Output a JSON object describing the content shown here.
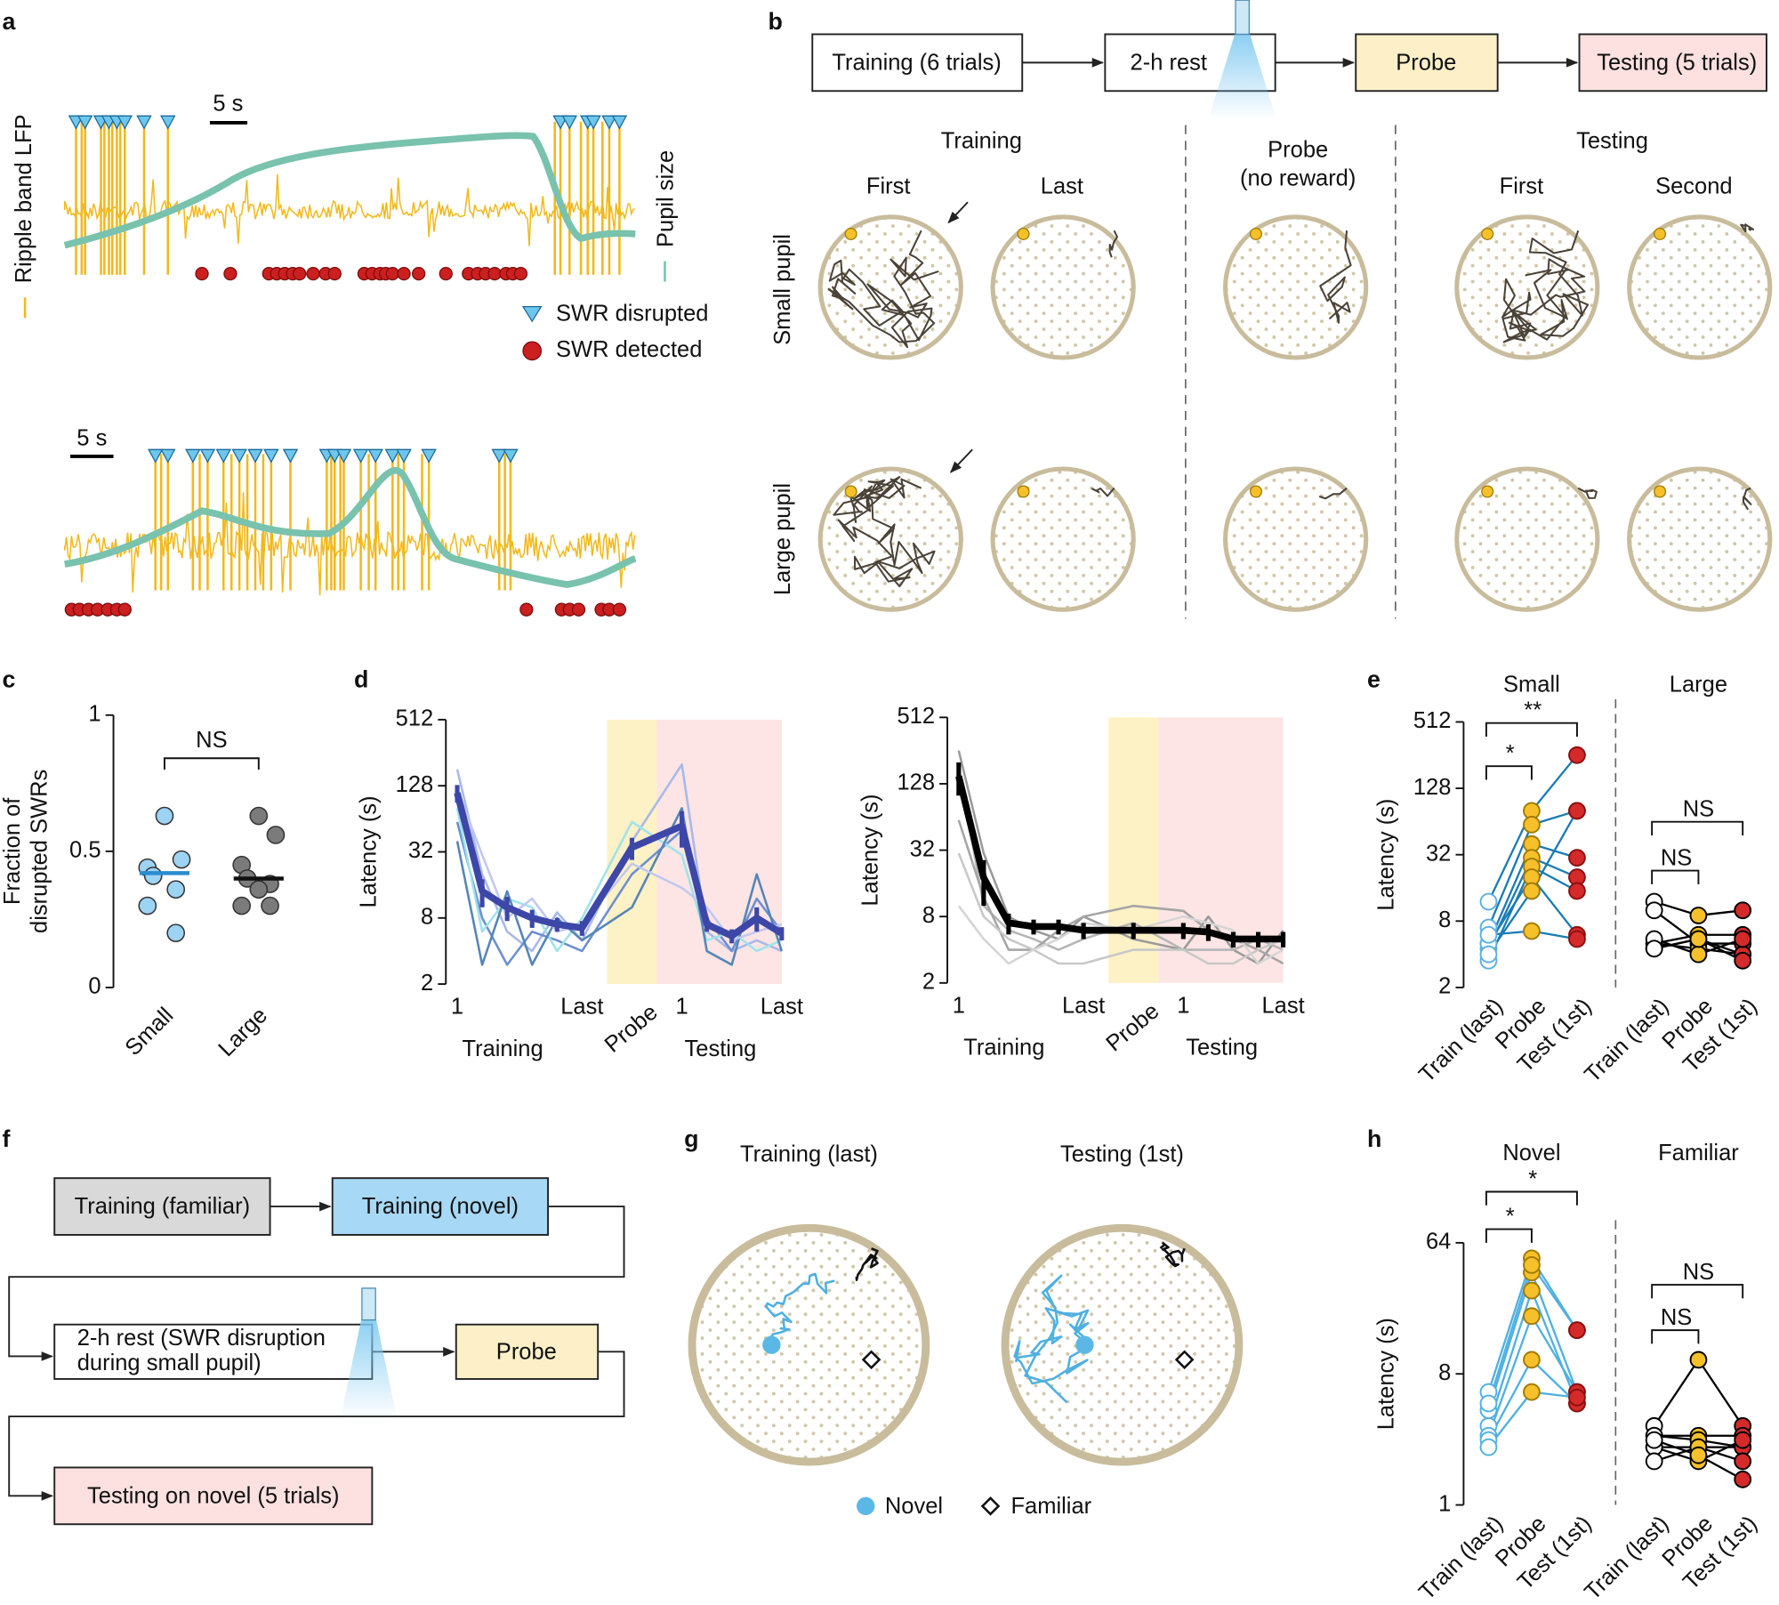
{
  "panel_labels": [
    "a",
    "b",
    "c",
    "d",
    "e",
    "f",
    "g",
    "h"
  ],
  "panel_a": {
    "y_label": "Ripple band LFP",
    "y2_label": "Pupil size",
    "scale_bars": [
      "5 s",
      "5 s"
    ],
    "legend": [
      "SWR disrupted",
      "SWR detected"
    ]
  },
  "panel_b": {
    "flow": [
      "Training (6 trials)",
      "2-h rest",
      "Probe",
      "Testing (5 trials)"
    ],
    "training": "Training",
    "training_cols": [
      "First",
      "Last"
    ],
    "probe": [
      "Probe",
      "(no reward)"
    ],
    "testing": "Testing",
    "testing_cols": [
      "First",
      "Second"
    ],
    "rows": [
      "Small pupil",
      "Large pupil"
    ]
  },
  "panel_f": {
    "boxes": [
      "Training (familiar)",
      "Training (novel)",
      "2-h rest (SWR disruption",
      "during small pupil)",
      "Probe",
      "Testing on novel (5 trials)"
    ]
  },
  "panel_g": {
    "titles": [
      "Training (last)",
      "Testing (1st)"
    ],
    "legend": [
      "Novel",
      "Familiar"
    ]
  },
  "chart_data": [
    {
      "type": "strip",
      "y_label": [
        "Fraction of",
        "disrupted SWRs"
      ],
      "categories": [
        "Small",
        "Large"
      ],
      "values": [
        [
          0.63,
          0.47,
          0.44,
          0.41,
          0.36,
          0.3,
          0.2
        ],
        [
          0.63,
          0.56,
          0.45,
          0.4,
          0.38,
          0.3,
          0.3,
          0.36
        ]
      ],
      "medians": [
        0.42,
        0.4
      ],
      "colors": [
        "#9dd3f3",
        "#7b7b7b"
      ],
      "median_colors": [
        "#2a8ccf",
        "#111111"
      ],
      "ylim": [
        0,
        1
      ],
      "yticks": [
        0,
        0.5,
        1
      ],
      "annotation": "NS"
    },
    {
      "type": "line",
      "y_label": "Latency (s)",
      "log_base": 2,
      "ylim": [
        2,
        512
      ],
      "yticks": [
        2,
        8,
        32,
        128,
        512
      ],
      "categories": [
        "1",
        null,
        null,
        null,
        null,
        "Last",
        "Probe",
        "1",
        null,
        null,
        null,
        "Last"
      ],
      "group_labels": [
        "Training",
        "Testing"
      ],
      "mean": {
        "color": "#3d47a8",
        "values": [
          110,
          14,
          10,
          8,
          7,
          6.5,
          35,
          55,
          7,
          5.5,
          8,
          5.8
        ],
        "errors": [
          20,
          4,
          2.5,
          1.5,
          1,
          1,
          8,
          20,
          1,
          0.8,
          2,
          0.8
        ]
      },
      "series": [
        {
          "color": "#a9b8e8",
          "values": [
            180,
            20,
            6,
            4,
            9,
            5,
            40,
            200,
            6,
            4,
            5,
            4
          ]
        },
        {
          "color": "#6c8fd1",
          "values": [
            60,
            8,
            3,
            6,
            5,
            4,
            20,
            50,
            8,
            4,
            12,
            6
          ]
        },
        {
          "color": "#9fe3ea",
          "values": [
            80,
            6,
            12,
            10,
            4,
            8,
            60,
            30,
            5,
            6,
            4,
            5
          ]
        },
        {
          "color": "#5585b5",
          "values": [
            40,
            3,
            14,
            3,
            8,
            5,
            10,
            80,
            4,
            3,
            20,
            4
          ]
        },
        {
          "color": "#c0c8f0",
          "values": [
            120,
            30,
            8,
            12,
            6,
            7,
            25,
            15,
            10,
            5,
            6,
            7
          ]
        }
      ]
    },
    {
      "type": "line",
      "y_label": "Latency (s)",
      "log_base": 2,
      "ylim": [
        2,
        512
      ],
      "yticks": [
        2,
        8,
        32,
        128,
        512
      ],
      "categories": [
        "1",
        null,
        null,
        null,
        null,
        "Last",
        "Probe",
        "1",
        null,
        null,
        null,
        "Last"
      ],
      "group_labels": [
        "Training",
        "Testing"
      ],
      "mean": {
        "color": "#000000",
        "values": [
          150,
          18,
          7,
          6.5,
          6.5,
          6,
          6,
          6,
          5.8,
          5,
          5,
          5
        ],
        "errors": [
          50,
          8,
          1.5,
          1,
          1,
          1,
          1,
          1,
          1,
          0.8,
          0.8,
          0.8
        ]
      },
      "series": [
        {
          "color": "#9a9a9a",
          "values": [
            256,
            30,
            8,
            6,
            5,
            8,
            5,
            4,
            8,
            4,
            3,
            6
          ]
        },
        {
          "color": "#b5b5b5",
          "values": [
            180,
            10,
            6,
            5,
            4,
            5,
            7,
            4,
            4,
            4,
            5,
            4
          ]
        },
        {
          "color": "#a5a5a5",
          "values": [
            60,
            12,
            4,
            4,
            6,
            8,
            10,
            9,
            6,
            5,
            4,
            3
          ]
        },
        {
          "color": "#c8c8c8",
          "values": [
            30,
            8,
            5,
            4,
            3,
            3,
            4,
            4,
            3,
            3,
            4,
            5
          ]
        },
        {
          "color": "#d5d5d5",
          "values": [
            10,
            5,
            3,
            4,
            5,
            7,
            6,
            8,
            7,
            6,
            3,
            4
          ]
        }
      ]
    },
    {
      "type": "paired",
      "y_label": "Latency (s)",
      "log_base": 2,
      "ylim": [
        2,
        512
      ],
      "yticks": [
        2,
        8,
        32,
        128,
        512
      ],
      "conditions": [
        "Train (last)",
        "Probe",
        "Test (1st)"
      ],
      "point_colors": [
        "#ffffff",
        "#f5c02a",
        "#d42a2a"
      ],
      "groups": [
        {
          "name": "Small",
          "line_color": "#1a7bb3",
          "edge_colors": [
            "#5bb0e0",
            "#a07a00",
            "#8a1010"
          ],
          "annotations": [
            "*",
            "**"
          ],
          "values": [
            [
              12,
              80,
              256
            ],
            [
              7,
              60,
              80
            ],
            [
              5,
              40,
              30
            ],
            [
              4.5,
              30,
              20
            ],
            [
              3.5,
              25,
              15
            ],
            [
              5,
              20,
              6
            ],
            [
              6,
              6.5,
              5.5
            ],
            [
              4,
              15,
              80
            ]
          ]
        },
        {
          "name": "Large",
          "line_color": "#000000",
          "edge_colors": [
            "#000000",
            "#000000",
            "#000000"
          ],
          "annotations": [
            "NS",
            "NS"
          ],
          "values": [
            [
              12,
              9,
              10
            ],
            [
              10,
              5,
              5
            ],
            [
              5,
              4.5,
              4
            ],
            [
              5,
              6,
              6
            ],
            [
              4.5,
              5.5,
              4
            ],
            [
              5.5,
              4,
              5.5
            ],
            [
              4.5,
              5.5,
              3.5
            ]
          ]
        }
      ]
    },
    {
      "type": "paired",
      "y_label": "Latency (s)",
      "log_base": 2,
      "ylim": [
        1,
        64
      ],
      "yticks": [
        1,
        8,
        64
      ],
      "conditions": [
        "Train (last)",
        "Probe",
        "Test (1st)"
      ],
      "point_colors": [
        "#ffffff",
        "#f5c02a",
        "#d42a2a"
      ],
      "groups": [
        {
          "name": "Novel",
          "line_color": "#4fb0e0",
          "edge_colors": [
            "#4fb0e0",
            "#a07a00",
            "#8a1010"
          ],
          "annotations": [
            "*",
            "*"
          ],
          "values": [
            [
              6,
              50,
              16
            ],
            [
              4.5,
              40,
              6
            ],
            [
              3.5,
              30,
              5
            ],
            [
              3,
              20,
              6
            ],
            [
              2.8,
              10,
              5
            ],
            [
              2.5,
              6,
              5.5
            ],
            [
              5,
              45,
              16
            ]
          ]
        },
        {
          "name": "Familiar",
          "line_color": "#000000",
          "edge_colors": [
            "#000000",
            "#000000",
            "#000000"
          ],
          "annotations": [
            "NS",
            "NS"
          ],
          "values": [
            [
              3.5,
              10,
              3.5
            ],
            [
              3,
              3,
              3
            ],
            [
              3,
              2.8,
              2.5
            ],
            [
              2.5,
              2.5,
              2.5
            ],
            [
              2.5,
              2,
              2.8
            ],
            [
              2,
              2.5,
              2
            ],
            [
              2.8,
              2.2,
              1.5
            ]
          ]
        }
      ]
    }
  ]
}
